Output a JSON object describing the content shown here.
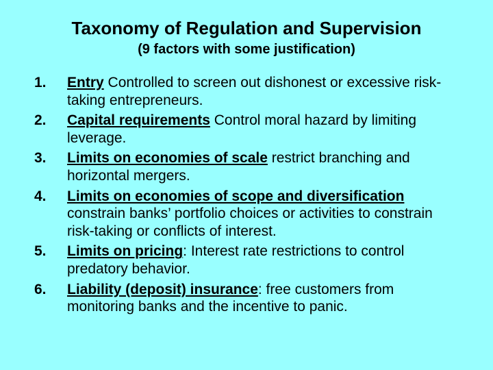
{
  "background_color": "#99ffff",
  "text_color": "#000000",
  "font_family": "Arial",
  "title": "Taxonomy of Regulation and Supervision",
  "title_fontsize": 26,
  "subtitle": "(9 factors with some justification)",
  "subtitle_fontsize": 20,
  "body_fontsize": 21,
  "items": [
    {
      "num": "1.",
      "term": "Entry",
      "rest": " Controlled to screen out dishonest or excessive risk-taking entrepreneurs."
    },
    {
      "num": "2.",
      "term": "Capital requirements",
      "rest": " Control moral hazard by limiting leverage."
    },
    {
      "num": "3.",
      "term": "Limits on economies of scale",
      "rest": " restrict branching and horizontal mergers."
    },
    {
      "num": "4.",
      "term": "Limits on economies of scope and diversification",
      "rest": " constrain banks’ portfolio choices or activities to constrain risk-taking or conflicts of interest."
    },
    {
      "num": "5.",
      "term": "Limits on pricing",
      "rest": ":  Interest rate restrictions to control predatory behavior."
    },
    {
      "num": "6.",
      "term": "Liability (deposit) insurance",
      "rest": ": free customers from monitoring banks and the incentive to panic."
    }
  ]
}
